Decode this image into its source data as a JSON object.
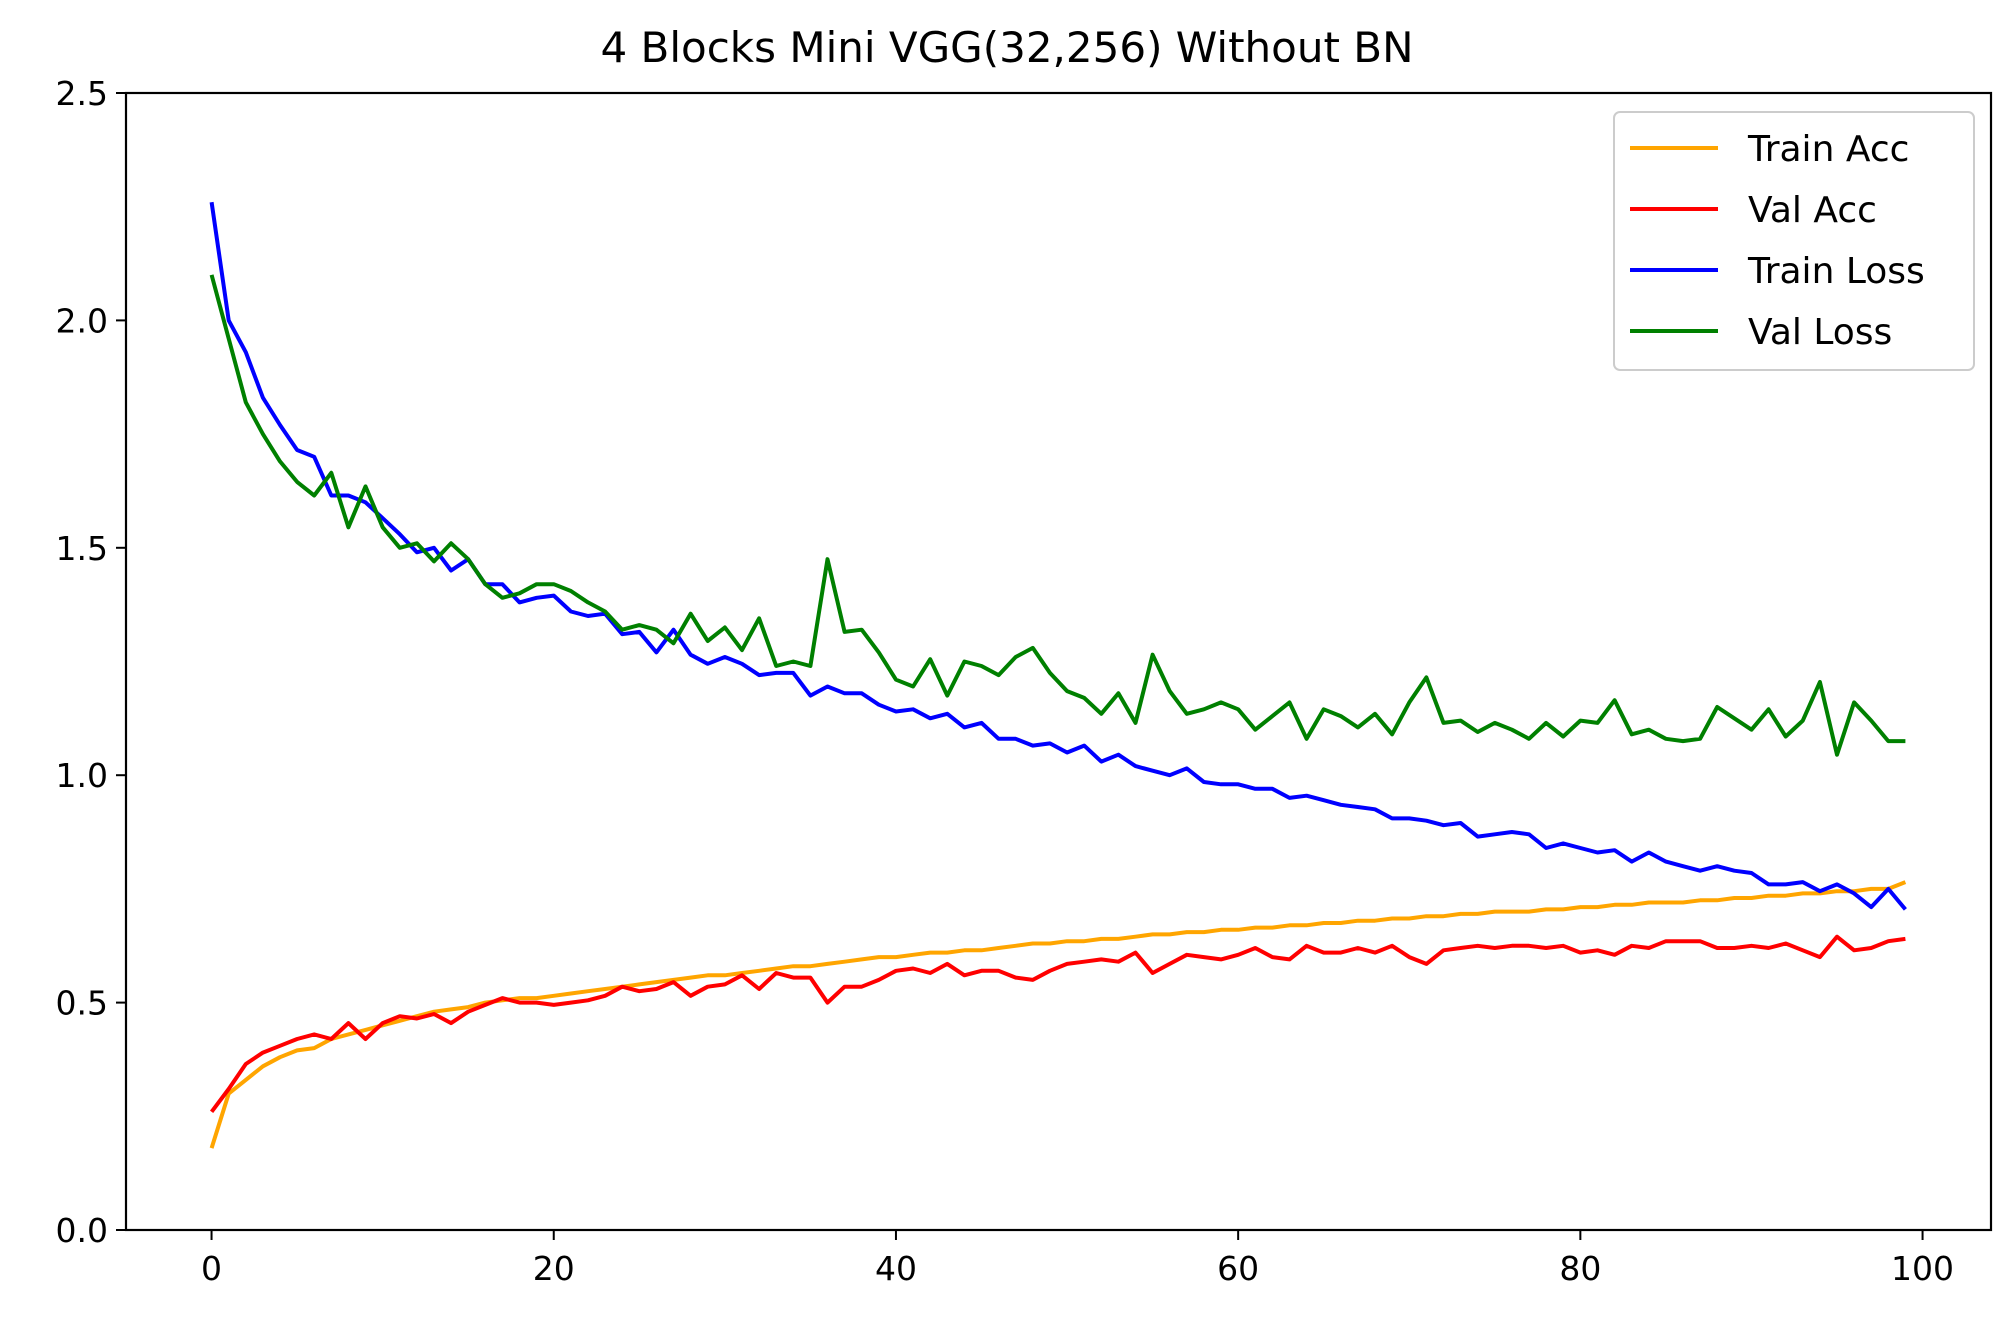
{
  "chart_data": {
    "type": "line",
    "title": "4 Blocks Mini VGG(32,256) Without BN",
    "xlabel": "",
    "ylabel": "",
    "xlim": [
      -5,
      104
    ],
    "ylim": [
      0.0,
      2.5
    ],
    "xticks": [
      0,
      20,
      40,
      60,
      80,
      100
    ],
    "xtick_labels": [
      "0",
      "20",
      "40",
      "60",
      "80",
      "100"
    ],
    "yticks": [
      0.0,
      0.5,
      1.0,
      1.5,
      2.0,
      2.5
    ],
    "ytick_labels": [
      "0.0",
      "0.5",
      "1.0",
      "1.5",
      "2.0",
      "2.5"
    ],
    "grid": false,
    "legend_position": "top-right",
    "x": [
      0,
      1,
      2,
      3,
      4,
      5,
      6,
      7,
      8,
      9,
      10,
      11,
      12,
      13,
      14,
      15,
      16,
      17,
      18,
      19,
      20,
      21,
      22,
      23,
      24,
      25,
      26,
      27,
      28,
      29,
      30,
      31,
      32,
      33,
      34,
      35,
      36,
      37,
      38,
      39,
      40,
      41,
      42,
      43,
      44,
      45,
      46,
      47,
      48,
      49,
      50,
      51,
      52,
      53,
      54,
      55,
      56,
      57,
      58,
      59,
      60,
      61,
      62,
      63,
      64,
      65,
      66,
      67,
      68,
      69,
      70,
      71,
      72,
      73,
      74,
      75,
      76,
      77,
      78,
      79,
      80,
      81,
      82,
      83,
      84,
      85,
      86,
      87,
      88,
      89,
      90,
      91,
      92,
      93,
      94,
      95,
      96,
      97,
      98,
      99
    ],
    "series": [
      {
        "name": "Train Acc",
        "color": "#FFA500",
        "values": [
          0.18,
          0.3,
          0.33,
          0.36,
          0.38,
          0.395,
          0.4,
          0.42,
          0.43,
          0.44,
          0.45,
          0.46,
          0.47,
          0.48,
          0.485,
          0.49,
          0.5,
          0.505,
          0.51,
          0.51,
          0.515,
          0.52,
          0.525,
          0.53,
          0.535,
          0.54,
          0.545,
          0.55,
          0.555,
          0.56,
          0.56,
          0.565,
          0.57,
          0.575,
          0.58,
          0.58,
          0.585,
          0.59,
          0.595,
          0.6,
          0.6,
          0.605,
          0.61,
          0.61,
          0.615,
          0.615,
          0.62,
          0.625,
          0.63,
          0.63,
          0.635,
          0.635,
          0.64,
          0.64,
          0.645,
          0.65,
          0.65,
          0.655,
          0.655,
          0.66,
          0.66,
          0.665,
          0.665,
          0.67,
          0.67,
          0.675,
          0.675,
          0.68,
          0.68,
          0.685,
          0.685,
          0.69,
          0.69,
          0.695,
          0.695,
          0.7,
          0.7,
          0.7,
          0.705,
          0.705,
          0.71,
          0.71,
          0.715,
          0.715,
          0.72,
          0.72,
          0.72,
          0.725,
          0.725,
          0.73,
          0.73,
          0.735,
          0.735,
          0.74,
          0.74,
          0.745,
          0.745,
          0.75,
          0.75,
          0.765
        ]
      },
      {
        "name": "Val Acc",
        "color": "#FF0000",
        "values": [
          0.26,
          0.31,
          0.365,
          0.39,
          0.405,
          0.42,
          0.43,
          0.42,
          0.455,
          0.42,
          0.455,
          0.47,
          0.465,
          0.475,
          0.455,
          0.48,
          0.495,
          0.51,
          0.5,
          0.5,
          0.495,
          0.5,
          0.505,
          0.515,
          0.535,
          0.525,
          0.53,
          0.545,
          0.515,
          0.535,
          0.54,
          0.56,
          0.53,
          0.565,
          0.555,
          0.555,
          0.5,
          0.535,
          0.535,
          0.55,
          0.57,
          0.575,
          0.565,
          0.585,
          0.56,
          0.57,
          0.57,
          0.555,
          0.55,
          0.57,
          0.585,
          0.59,
          0.595,
          0.59,
          0.61,
          0.565,
          0.585,
          0.605,
          0.6,
          0.595,
          0.605,
          0.62,
          0.6,
          0.595,
          0.625,
          0.61,
          0.61,
          0.62,
          0.61,
          0.625,
          0.6,
          0.585,
          0.615,
          0.62,
          0.625,
          0.62,
          0.625,
          0.625,
          0.62,
          0.625,
          0.61,
          0.615,
          0.605,
          0.625,
          0.62,
          0.635,
          0.635,
          0.635,
          0.62,
          0.62,
          0.625,
          0.62,
          0.63,
          0.615,
          0.6,
          0.645,
          0.615,
          0.62,
          0.635,
          0.64
        ]
      },
      {
        "name": "Train Loss",
        "color": "#0000FF",
        "values": [
          2.26,
          2.0,
          1.93,
          1.83,
          1.77,
          1.715,
          1.7,
          1.615,
          1.615,
          1.6,
          1.565,
          1.53,
          1.49,
          1.5,
          1.45,
          1.475,
          1.42,
          1.42,
          1.38,
          1.39,
          1.395,
          1.36,
          1.35,
          1.355,
          1.31,
          1.315,
          1.27,
          1.32,
          1.265,
          1.245,
          1.26,
          1.245,
          1.22,
          1.225,
          1.225,
          1.175,
          1.195,
          1.18,
          1.18,
          1.155,
          1.14,
          1.145,
          1.125,
          1.135,
          1.105,
          1.115,
          1.08,
          1.08,
          1.065,
          1.07,
          1.05,
          1.065,
          1.03,
          1.045,
          1.02,
          1.01,
          1.0,
          1.015,
          0.985,
          0.98,
          0.98,
          0.97,
          0.97,
          0.95,
          0.955,
          0.945,
          0.935,
          0.93,
          0.925,
          0.905,
          0.905,
          0.9,
          0.89,
          0.895,
          0.865,
          0.87,
          0.875,
          0.87,
          0.84,
          0.85,
          0.84,
          0.83,
          0.835,
          0.81,
          0.83,
          0.81,
          0.8,
          0.79,
          0.8,
          0.79,
          0.785,
          0.76,
          0.76,
          0.765,
          0.745,
          0.76,
          0.74,
          0.71,
          0.75,
          0.705
        ]
      },
      {
        "name": "Val Loss",
        "color": "#008000",
        "values": [
          2.1,
          1.96,
          1.82,
          1.75,
          1.69,
          1.645,
          1.615,
          1.665,
          1.545,
          1.635,
          1.545,
          1.5,
          1.51,
          1.47,
          1.51,
          1.475,
          1.42,
          1.39,
          1.4,
          1.42,
          1.42,
          1.405,
          1.38,
          1.36,
          1.32,
          1.33,
          1.32,
          1.29,
          1.355,
          1.295,
          1.325,
          1.275,
          1.345,
          1.24,
          1.25,
          1.24,
          1.475,
          1.315,
          1.32,
          1.27,
          1.21,
          1.195,
          1.255,
          1.175,
          1.25,
          1.24,
          1.22,
          1.26,
          1.28,
          1.225,
          1.185,
          1.17,
          1.135,
          1.18,
          1.115,
          1.265,
          1.185,
          1.135,
          1.145,
          1.16,
          1.145,
          1.1,
          1.13,
          1.16,
          1.08,
          1.145,
          1.13,
          1.105,
          1.135,
          1.09,
          1.16,
          1.215,
          1.115,
          1.12,
          1.095,
          1.115,
          1.1,
          1.08,
          1.115,
          1.085,
          1.12,
          1.115,
          1.165,
          1.09,
          1.1,
          1.08,
          1.075,
          1.08,
          1.15,
          1.125,
          1.1,
          1.145,
          1.085,
          1.12,
          1.205,
          1.045,
          1.16,
          1.12,
          1.075,
          1.075
        ]
      }
    ]
  }
}
